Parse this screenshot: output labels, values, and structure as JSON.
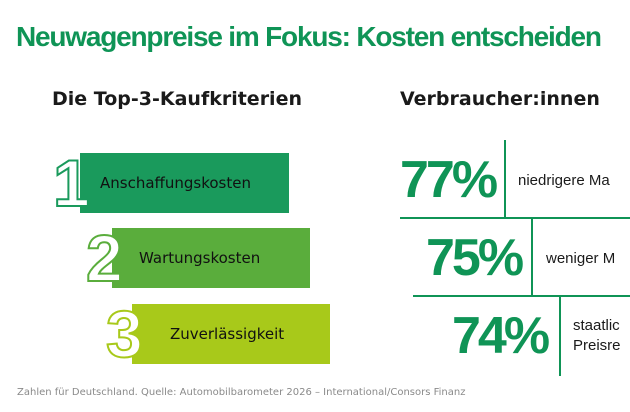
{
  "title": "Neuwagenpreise im Fokus: Kosten entscheiden",
  "left": {
    "heading": "Die Top-3-Kaufkriterien",
    "items": [
      {
        "rank": "1",
        "label": "Anschaffungskosten",
        "color": "#1a9a5c"
      },
      {
        "rank": "2",
        "label": "Wartungskosten",
        "color": "#5aad3c"
      },
      {
        "rank": "3",
        "label": "Zuverlässigkeit",
        "color": "#a8c91a"
      }
    ]
  },
  "right": {
    "heading": "Verbraucher:innen",
    "items": [
      {
        "value": "77%",
        "text": "niedrigere Ma"
      },
      {
        "value": "75%",
        "text": "weniger M"
      },
      {
        "value": "74%",
        "text": "staatlic",
        "text2": "Preisre"
      }
    ],
    "accent": "#0f9456"
  },
  "footer": "Zahlen für Deutschland. Quelle: Automobilbarometer 2026 – International/Consors Finanz"
}
